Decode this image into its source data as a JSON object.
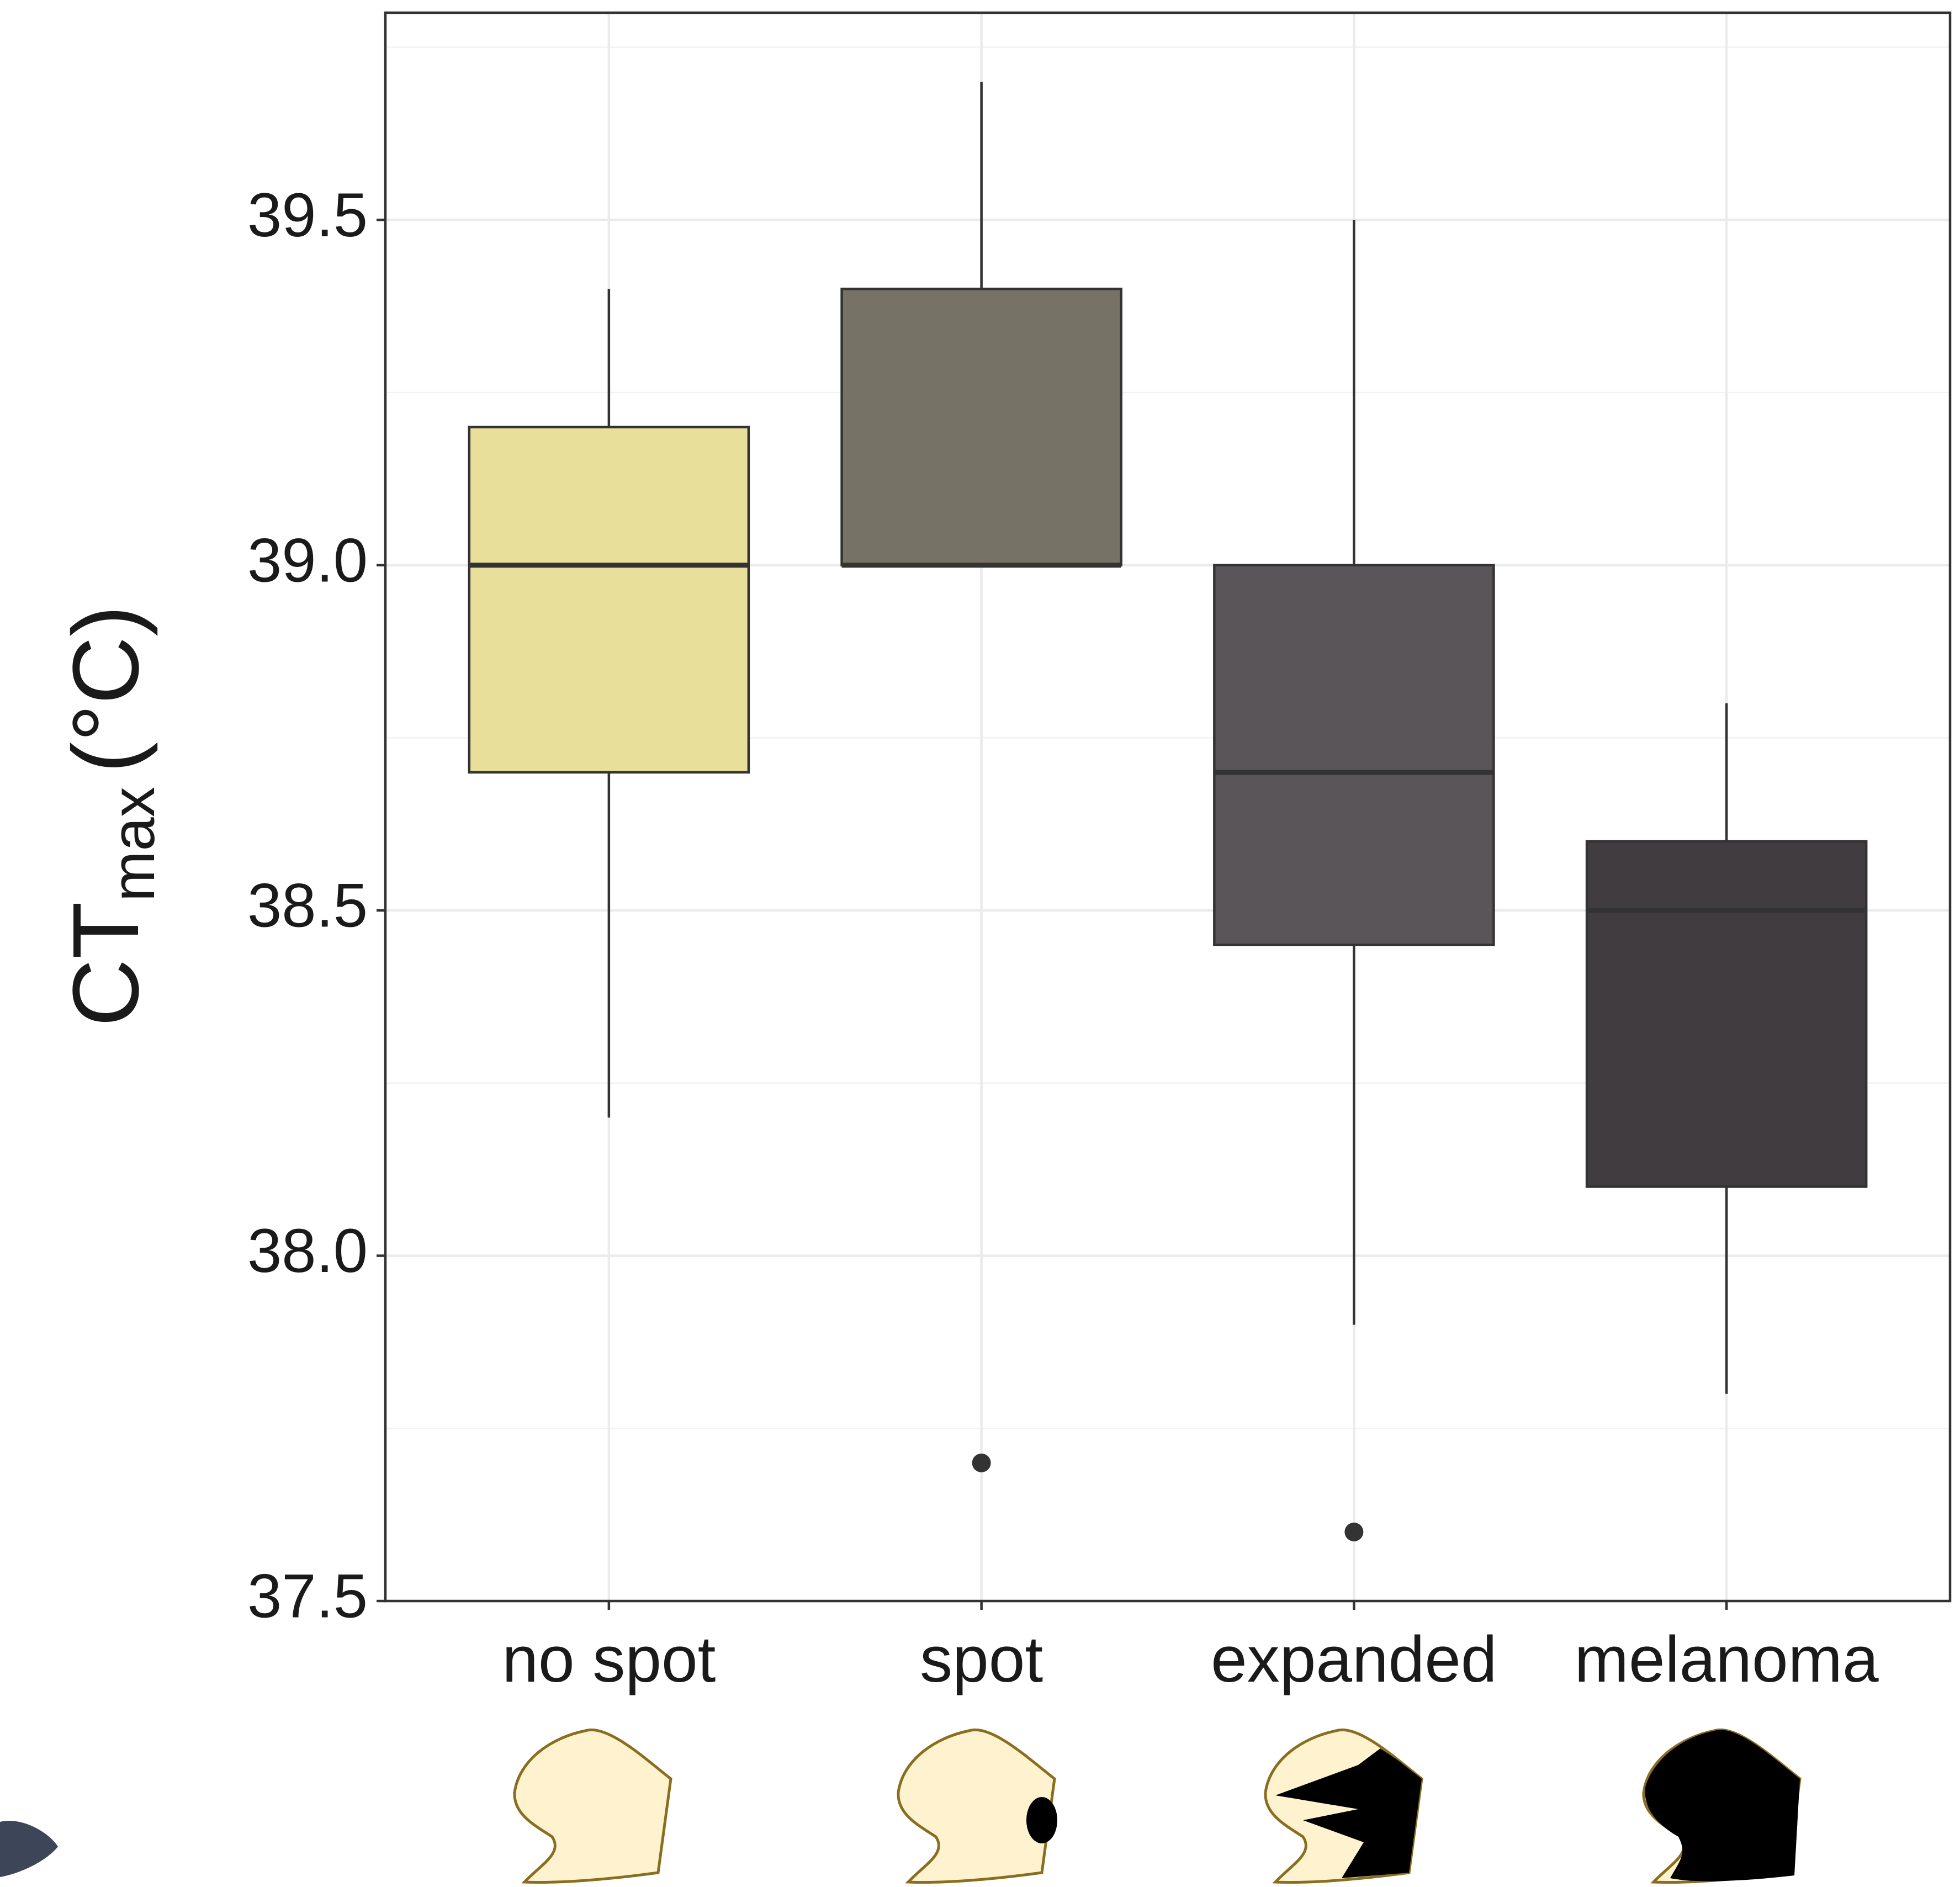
{
  "chart_data": {
    "type": "box",
    "y_label": {
      "main": "CT",
      "sub": "max",
      "unit": "(°C)"
    },
    "categories": [
      "no spot",
      "spot",
      "expanded",
      "melanoma"
    ],
    "colors": [
      "#e8df9a",
      "#767265",
      "#5a5558",
      "#403c40"
    ],
    "boxes": [
      {
        "min": 38.2,
        "q1": 38.7,
        "median": 39.0,
        "q3": 39.2,
        "max": 39.4,
        "outliers": []
      },
      {
        "min": 39.0,
        "q1": 39.0,
        "median": 39.0,
        "q3": 39.4,
        "max": 39.7,
        "outliers": [
          37.7
        ]
      },
      {
        "min": 37.9,
        "q1": 38.45,
        "median": 38.7,
        "q3": 39.0,
        "max": 39.5,
        "outliers": [
          37.6
        ]
      },
      {
        "min": 37.8,
        "q1": 38.1,
        "median": 38.5,
        "q3": 38.6,
        "max": 38.8,
        "outliers": []
      }
    ],
    "ylim": [
      37.5,
      39.8
    ],
    "yticks": [
      {
        "value": 37.5,
        "label": "37.5"
      },
      {
        "value": 38,
        "label": "38.0"
      },
      {
        "value": 38.5,
        "label": "38.5"
      },
      {
        "value": 39,
        "label": "39.0"
      },
      {
        "value": 39.5,
        "label": "39.5"
      }
    ],
    "y_minor_grid": [
      37.75,
      38.25,
      38.75,
      39.25,
      39.75
    ],
    "grid": true
  }
}
